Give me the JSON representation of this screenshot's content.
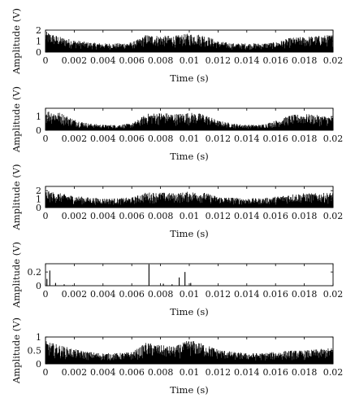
{
  "chart_data": [
    {
      "type": "line",
      "xlabel": "Time (s)",
      "ylabel": "Amplitude (V)",
      "xlim": [
        0,
        0.02
      ],
      "ylim": [
        0,
        2
      ],
      "xticks": [
        "0",
        "0.002",
        "0.004",
        "0.006",
        "0.008",
        "0.01",
        "0.012",
        "0.014",
        "0.016",
        "0.018",
        "0.02"
      ],
      "yticks": [
        "0",
        "1",
        "2"
      ],
      "ytick_values": [
        0,
        1,
        2
      ],
      "envelope_t": [
        0,
        0.001,
        0.002,
        0.003,
        0.004,
        0.005,
        0.006,
        0.0065,
        0.007,
        0.008,
        0.009,
        0.01,
        0.011,
        0.012,
        0.013,
        0.014,
        0.015,
        0.016,
        0.017,
        0.018,
        0.019,
        0.02
      ],
      "envelope_peak": [
        1.9,
        1.4,
        1.1,
        0.9,
        0.8,
        0.8,
        0.9,
        1.2,
        1.6,
        1.5,
        1.5,
        1.7,
        1.6,
        1.0,
        0.8,
        0.8,
        0.8,
        0.9,
        1.3,
        1.4,
        1.5,
        1.6
      ]
    },
    {
      "type": "line",
      "xlabel": "Time (s)",
      "ylabel": "Amplitude (V)",
      "xlim": [
        0,
        0.02
      ],
      "ylim": [
        0,
        1.6
      ],
      "xticks": [
        "0",
        "0.002",
        "0.004",
        "0.006",
        "0.008",
        "0.01",
        "0.012",
        "0.014",
        "0.016",
        "0.018",
        "0.02"
      ],
      "yticks": [
        "0",
        "1"
      ],
      "ytick_values": [
        0,
        1
      ],
      "envelope_t": [
        0,
        0.001,
        0.002,
        0.003,
        0.004,
        0.005,
        0.006,
        0.0065,
        0.007,
        0.008,
        0.009,
        0.01,
        0.011,
        0.012,
        0.013,
        0.014,
        0.015,
        0.016,
        0.017,
        0.018,
        0.019,
        0.02
      ],
      "envelope_peak": [
        1.5,
        1.3,
        0.8,
        0.5,
        0.4,
        0.4,
        0.5,
        0.8,
        1.2,
        1.3,
        1.2,
        1.3,
        1.2,
        0.7,
        0.5,
        0.4,
        0.4,
        0.7,
        1.1,
        1.2,
        1.1,
        1.0
      ]
    },
    {
      "type": "line",
      "xlabel": "Time (s)",
      "ylabel": "Amplitude (V)",
      "xlim": [
        0,
        0.02
      ],
      "ylim": [
        0,
        2.5
      ],
      "xticks": [
        "0",
        "0.002",
        "0.004",
        "0.006",
        "0.008",
        "0.01",
        "0.012",
        "0.014",
        "0.016",
        "0.018",
        "0.02"
      ],
      "yticks": [
        "0",
        "1",
        "2"
      ],
      "ytick_values": [
        0,
        1,
        2
      ],
      "envelope_t": [
        0,
        0.001,
        0.002,
        0.003,
        0.004,
        0.005,
        0.006,
        0.0065,
        0.007,
        0.008,
        0.009,
        0.01,
        0.011,
        0.012,
        0.013,
        0.014,
        0.015,
        0.016,
        0.017,
        0.018,
        0.019,
        0.02
      ],
      "envelope_peak": [
        2.0,
        1.7,
        1.4,
        1.2,
        1.1,
        1.1,
        1.2,
        1.5,
        1.8,
        1.8,
        1.7,
        1.9,
        1.8,
        1.3,
        1.2,
        1.1,
        1.1,
        1.3,
        1.6,
        1.7,
        1.7,
        1.8
      ]
    },
    {
      "type": "line",
      "xlabel": "Time (s)",
      "ylabel": "Amplitude (V)",
      "xlim": [
        0,
        0.02
      ],
      "ylim": [
        0,
        0.32
      ],
      "xticks": [
        "0",
        "0.002",
        "0.004",
        "0.006",
        "0.008",
        "0.01",
        "0.012",
        "0.014",
        "0.016",
        "0.018",
        "0.02"
      ],
      "yticks": [
        "0",
        "0.2"
      ],
      "ytick_values": [
        0,
        0.2
      ],
      "spikes": [
        [
          0.0001,
          0.1
        ],
        [
          0.0003,
          0.22
        ],
        [
          0.0007,
          0.04
        ],
        [
          0.0013,
          0.02
        ],
        [
          0.0019,
          0.01
        ],
        [
          0.0072,
          0.31
        ],
        [
          0.0082,
          0.03
        ],
        [
          0.0088,
          0.02
        ],
        [
          0.0093,
          0.12
        ],
        [
          0.0097,
          0.2
        ],
        [
          0.0101,
          0.04
        ]
      ]
    },
    {
      "type": "line",
      "xlabel": "Time (s)",
      "ylabel": "Amplitude (V)",
      "xlim": [
        0,
        0.02
      ],
      "ylim": [
        0,
        1
      ],
      "xticks": [
        "0",
        "0.002",
        "0.004",
        "0.006",
        "0.008",
        "0.01",
        "0.012",
        "0.014",
        "0.016",
        "0.018",
        "0.02"
      ],
      "yticks": [
        "0",
        "0.5",
        "1"
      ],
      "ytick_values": [
        0,
        0.5,
        1
      ],
      "envelope_t": [
        0,
        0.001,
        0.002,
        0.003,
        0.004,
        0.005,
        0.006,
        0.0065,
        0.007,
        0.008,
        0.009,
        0.01,
        0.011,
        0.012,
        0.013,
        0.014,
        0.015,
        0.016,
        0.017,
        0.018,
        0.019,
        0.02
      ],
      "envelope_peak": [
        0.85,
        0.7,
        0.55,
        0.45,
        0.4,
        0.4,
        0.45,
        0.6,
        0.8,
        0.7,
        0.65,
        0.9,
        0.75,
        0.55,
        0.45,
        0.4,
        0.4,
        0.45,
        0.5,
        0.5,
        0.55,
        0.6
      ]
    }
  ]
}
